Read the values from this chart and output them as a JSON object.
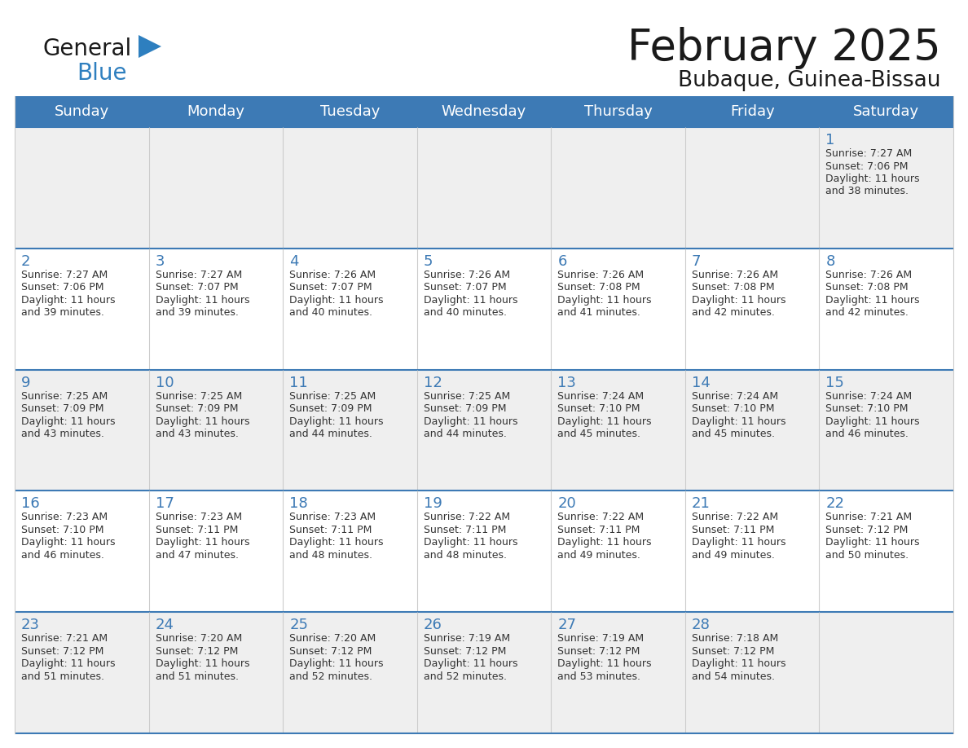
{
  "title": "February 2025",
  "subtitle": "Bubaque, Guinea-Bissau",
  "header_color": "#3d7ab5",
  "header_text_color": "#FFFFFF",
  "day_names": [
    "Sunday",
    "Monday",
    "Tuesday",
    "Wednesday",
    "Thursday",
    "Friday",
    "Saturday"
  ],
  "bg_color": "#FFFFFF",
  "row_colors": [
    "#EFEFEF",
    "#FFFFFF",
    "#EFEFEF",
    "#FFFFFF",
    "#EFEFEF"
  ],
  "border_color": "#3d7ab5",
  "grid_color": "#CCCCCC",
  "day_number_color": "#3d7ab5",
  "info_text_color": "#333333",
  "title_color": "#1A1A1A",
  "subtitle_color": "#1A1A1A",
  "logo_general_color": "#1A1A1A",
  "logo_blue_color": "#2E7FBF",
  "logo_triangle_color": "#2E7FBF",
  "calendar": [
    [
      null,
      null,
      null,
      null,
      null,
      null,
      {
        "day": 1,
        "sunrise": "7:27 AM",
        "sunset": "7:06 PM",
        "daylight": "11 hours\nand 38 minutes."
      }
    ],
    [
      {
        "day": 2,
        "sunrise": "7:27 AM",
        "sunset": "7:06 PM",
        "daylight": "11 hours\nand 39 minutes."
      },
      {
        "day": 3,
        "sunrise": "7:27 AM",
        "sunset": "7:07 PM",
        "daylight": "11 hours\nand 39 minutes."
      },
      {
        "day": 4,
        "sunrise": "7:26 AM",
        "sunset": "7:07 PM",
        "daylight": "11 hours\nand 40 minutes."
      },
      {
        "day": 5,
        "sunrise": "7:26 AM",
        "sunset": "7:07 PM",
        "daylight": "11 hours\nand 40 minutes."
      },
      {
        "day": 6,
        "sunrise": "7:26 AM",
        "sunset": "7:08 PM",
        "daylight": "11 hours\nand 41 minutes."
      },
      {
        "day": 7,
        "sunrise": "7:26 AM",
        "sunset": "7:08 PM",
        "daylight": "11 hours\nand 42 minutes."
      },
      {
        "day": 8,
        "sunrise": "7:26 AM",
        "sunset": "7:08 PM",
        "daylight": "11 hours\nand 42 minutes."
      }
    ],
    [
      {
        "day": 9,
        "sunrise": "7:25 AM",
        "sunset": "7:09 PM",
        "daylight": "11 hours\nand 43 minutes."
      },
      {
        "day": 10,
        "sunrise": "7:25 AM",
        "sunset": "7:09 PM",
        "daylight": "11 hours\nand 43 minutes."
      },
      {
        "day": 11,
        "sunrise": "7:25 AM",
        "sunset": "7:09 PM",
        "daylight": "11 hours\nand 44 minutes."
      },
      {
        "day": 12,
        "sunrise": "7:25 AM",
        "sunset": "7:09 PM",
        "daylight": "11 hours\nand 44 minutes."
      },
      {
        "day": 13,
        "sunrise": "7:24 AM",
        "sunset": "7:10 PM",
        "daylight": "11 hours\nand 45 minutes."
      },
      {
        "day": 14,
        "sunrise": "7:24 AM",
        "sunset": "7:10 PM",
        "daylight": "11 hours\nand 45 minutes."
      },
      {
        "day": 15,
        "sunrise": "7:24 AM",
        "sunset": "7:10 PM",
        "daylight": "11 hours\nand 46 minutes."
      }
    ],
    [
      {
        "day": 16,
        "sunrise": "7:23 AM",
        "sunset": "7:10 PM",
        "daylight": "11 hours\nand 46 minutes."
      },
      {
        "day": 17,
        "sunrise": "7:23 AM",
        "sunset": "7:11 PM",
        "daylight": "11 hours\nand 47 minutes."
      },
      {
        "day": 18,
        "sunrise": "7:23 AM",
        "sunset": "7:11 PM",
        "daylight": "11 hours\nand 48 minutes."
      },
      {
        "day": 19,
        "sunrise": "7:22 AM",
        "sunset": "7:11 PM",
        "daylight": "11 hours\nand 48 minutes."
      },
      {
        "day": 20,
        "sunrise": "7:22 AM",
        "sunset": "7:11 PM",
        "daylight": "11 hours\nand 49 minutes."
      },
      {
        "day": 21,
        "sunrise": "7:22 AM",
        "sunset": "7:11 PM",
        "daylight": "11 hours\nand 49 minutes."
      },
      {
        "day": 22,
        "sunrise": "7:21 AM",
        "sunset": "7:12 PM",
        "daylight": "11 hours\nand 50 minutes."
      }
    ],
    [
      {
        "day": 23,
        "sunrise": "7:21 AM",
        "sunset": "7:12 PM",
        "daylight": "11 hours\nand 51 minutes."
      },
      {
        "day": 24,
        "sunrise": "7:20 AM",
        "sunset": "7:12 PM",
        "daylight": "11 hours\nand 51 minutes."
      },
      {
        "day": 25,
        "sunrise": "7:20 AM",
        "sunset": "7:12 PM",
        "daylight": "11 hours\nand 52 minutes."
      },
      {
        "day": 26,
        "sunrise": "7:19 AM",
        "sunset": "7:12 PM",
        "daylight": "11 hours\nand 52 minutes."
      },
      {
        "day": 27,
        "sunrise": "7:19 AM",
        "sunset": "7:12 PM",
        "daylight": "11 hours\nand 53 minutes."
      },
      {
        "day": 28,
        "sunrise": "7:18 AM",
        "sunset": "7:12 PM",
        "daylight": "11 hours\nand 54 minutes."
      },
      null
    ]
  ]
}
